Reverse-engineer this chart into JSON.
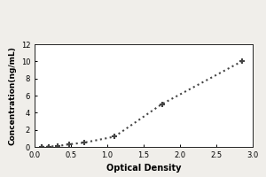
{
  "x_data": [
    0.1,
    0.2,
    0.32,
    0.47,
    0.68,
    1.1,
    1.75,
    2.85
  ],
  "y_data": [
    0.02,
    0.05,
    0.1,
    0.3,
    0.5,
    1.2,
    5.0,
    10.0
  ],
  "xlabel": "Optical Density",
  "ylabel": "Concentration(ng/mL)",
  "xlim": [
    0,
    3.0
  ],
  "ylim": [
    0,
    12
  ],
  "xticks": [
    0,
    0.5,
    1.0,
    1.5,
    2.0,
    2.5,
    3.0
  ],
  "yticks": [
    0,
    2,
    4,
    6,
    8,
    10,
    12
  ],
  "line_color": "#444444",
  "marker_color": "#444444",
  "bg_color": "#f0eeea",
  "plot_bg_color": "#ffffff",
  "xlabel_fontsize": 7,
  "ylabel_fontsize": 6.5,
  "tick_fontsize": 6,
  "line_style": "dotted",
  "line_width": 1.5,
  "marker": "+",
  "marker_size": 5,
  "marker_edge_width": 1.5
}
